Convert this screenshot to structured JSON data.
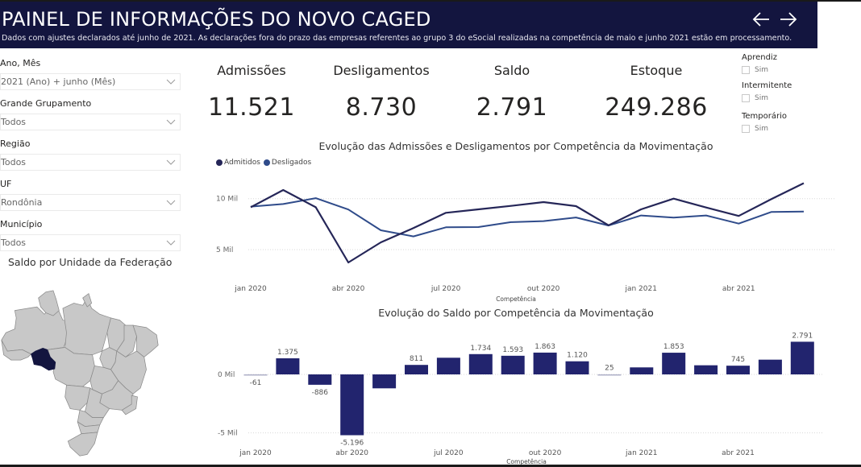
{
  "header": {
    "title": "PAINEL DE INFORMAÇÕES DO NOVO CAGED",
    "subtitle": "Dados com ajustes declarados até junho de 2021. As declarações fora do prazo das empresas referentes ao grupo 3 do eSocial realizadas na competência de maio e junho 2021 estão em processamento.",
    "nav": [
      {
        "icon": "arrow-left-icon",
        "glyph": "←"
      },
      {
        "icon": "arrow-right-icon",
        "glyph": "→"
      }
    ]
  },
  "slicers": [
    {
      "label": "Ano, Mês",
      "value": "2021 (Ano) + junho (Mês)"
    },
    {
      "label": "Grande Grupamento",
      "value": "Todos"
    },
    {
      "label": "Região",
      "value": "Todos"
    },
    {
      "label": "UF",
      "value": "Rondônia"
    },
    {
      "label": "Município",
      "value": "Todos"
    }
  ],
  "map": {
    "title": "Saldo por Unidade da Federação",
    "highlighted_state": "Rondônia",
    "highlight_color": "#13153f",
    "base_color": "#c8c8c8"
  },
  "kpis": [
    {
      "label": "Admissões",
      "value": "11.521"
    },
    {
      "label": "Desligamentos",
      "value": "8.730"
    },
    {
      "label": "Saldo",
      "value": "2.791"
    },
    {
      "label": "Estoque",
      "value": "249.286"
    }
  ],
  "filters": [
    {
      "label": "Aprendiz",
      "option": "Sim",
      "checked": false
    },
    {
      "label": "Intermitente",
      "option": "Sim",
      "checked": false
    },
    {
      "label": "Temporário",
      "option": "Sim",
      "checked": false
    }
  ],
  "colors": {
    "header_bg": "#13153f",
    "admitidos": "#252658",
    "desligados": "#2f4b8a",
    "bar": "#22246e"
  },
  "chart_data": [
    {
      "type": "line",
      "title": "Evolução das Admissões e Desligamentos por Competência da Movimentação",
      "xlabel": "Competência",
      "ylabel": "",
      "x": [
        "jan 2020",
        "fev 2020",
        "mar 2020",
        "abr 2020",
        "mai 2020",
        "jun 2020",
        "jul 2020",
        "ago 2020",
        "set 2020",
        "out 2020",
        "nov 2020",
        "dez 2020",
        "jan 2021",
        "fev 2021",
        "mar 2021",
        "abr 2021",
        "mai 2021",
        "jun 2021"
      ],
      "x_tick_labels": [
        "jan 2020",
        "abr 2020",
        "jul 2020",
        "out 2020",
        "jan 2021",
        "abr 2021"
      ],
      "y_tick_labels": [
        "5 Mil",
        "10 Mil"
      ],
      "y_ticks": [
        5000,
        10000
      ],
      "ylim": [
        2500,
        12000
      ],
      "grid": true,
      "legend_position": "top-left",
      "series": [
        {
          "name": "Admitidos",
          "values": [
            9160,
            10850,
            9160,
            3740,
            5710,
            7110,
            8610,
            8950,
            9290,
            9660,
            9270,
            7390,
            8950,
            10000,
            9130,
            8300,
            9950,
            11521
          ]
        },
        {
          "name": "Desligados",
          "values": [
            9221,
            9475,
            10046,
            8936,
            6900,
            6299,
            7186,
            7216,
            7697,
            7797,
            8150,
            7365,
            8350,
            8147,
            8350,
            7555,
            8690,
            8730
          ]
        }
      ]
    },
    {
      "type": "bar",
      "title": "Evolução do Saldo por Competência da Movimentação",
      "xlabel": "Competência",
      "ylabel": "",
      "categories": [
        "jan 2020",
        "fev 2020",
        "mar 2020",
        "abr 2020",
        "mai 2020",
        "jun 2020",
        "jul 2020",
        "ago 2020",
        "set 2020",
        "out 2020",
        "nov 2020",
        "dez 2020",
        "jan 2021",
        "fev 2021",
        "mar 2021",
        "abr 2021",
        "mai 2021",
        "jun 2021"
      ],
      "x_tick_labels": [
        "jan 2020",
        "abr 2020",
        "jul 2020",
        "out 2020",
        "jan 2021",
        "abr 2021"
      ],
      "y_tick_labels": [
        "-5 Mil",
        "0 Mil"
      ],
      "y_ticks": [
        -5000,
        0
      ],
      "ylim": [
        -5600,
        3200
      ],
      "grid": true,
      "values": [
        -61,
        1375,
        -886,
        -5196,
        -1190,
        811,
        1424,
        1734,
        1593,
        1863,
        1120,
        25,
        600,
        1853,
        780,
        745,
        1260,
        2791
      ],
      "data_labels": [
        "-61",
        "1.375",
        "-886",
        "-5.196",
        "",
        "811",
        "",
        "1.734",
        "1.593",
        "1.863",
        "1.120",
        "25",
        "",
        "1.853",
        "",
        "745",
        "",
        "2.791"
      ]
    }
  ]
}
